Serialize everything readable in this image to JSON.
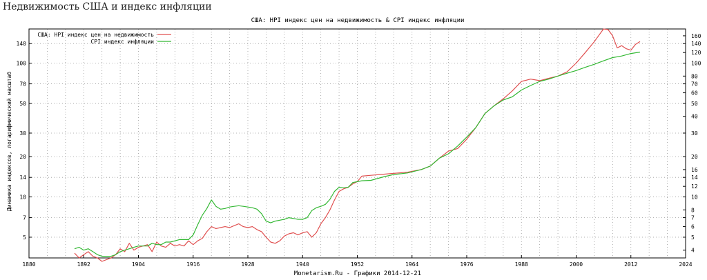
{
  "page": {
    "title": "Недвижимость США и индекс инфляции"
  },
  "chart_data": {
    "type": "line",
    "title": "США: HPI индекс цен на недвижимость & CPI индекс инфляции",
    "ylabel": "Динамика индексов, логарифмический масштаб",
    "footer": "Monetarism.Ru - Графики 2014-12-21",
    "y_scale": "log",
    "grid": true,
    "legend_position": "top-left",
    "xlim": [
      1880,
      2024
    ],
    "ylim": [
      3.5,
      180
    ],
    "x_ticks": [
      "1880",
      "1892",
      "1904",
      "1916",
      "1928",
      "1940",
      "1952",
      "1964",
      "1976",
      "1988",
      "2000",
      "2012",
      "2024"
    ],
    "y_ticks_left": [
      "5",
      "7",
      "10",
      "14",
      "20",
      "30",
      "50",
      "70",
      "100",
      "140"
    ],
    "y_ticks_right": [
      "4",
      "5",
      "6",
      "7",
      "8",
      "10",
      "12",
      "14",
      "16",
      "20",
      "30",
      "40",
      "50",
      "60",
      "70",
      "80",
      "100",
      "120",
      "140",
      "160"
    ],
    "series": [
      {
        "name": "США: HPI индекс цен на недвижимость",
        "color": "#e05050",
        "x": [
          1890,
          1891,
          1892,
          1893,
          1894,
          1895,
          1896,
          1897,
          1898,
          1899,
          1900,
          1901,
          1902,
          1903,
          1904,
          1905,
          1906,
          1907,
          1908,
          1909,
          1910,
          1911,
          1912,
          1913,
          1914,
          1915,
          1916,
          1917,
          1918,
          1919,
          1920,
          1921,
          1922,
          1923,
          1924,
          1925,
          1926,
          1927,
          1928,
          1929,
          1930,
          1931,
          1932,
          1933,
          1934,
          1935,
          1936,
          1937,
          1938,
          1939,
          1940,
          1941,
          1942,
          1943,
          1944,
          1945,
          1946,
          1947,
          1948,
          1949,
          1950,
          1951,
          1952,
          1953,
          1955,
          1958,
          1960,
          1963,
          1966,
          1968,
          1970,
          1972,
          1974,
          1976,
          1978,
          1980,
          1982,
          1984,
          1986,
          1988,
          1990,
          1992,
          1994,
          1996,
          1998,
          2000,
          2002,
          2004,
          2006,
          2007,
          2008,
          2009,
          2010,
          2011,
          2012,
          2013,
          2014
        ],
        "y": [
          3.8,
          3.5,
          3.7,
          3.9,
          3.6,
          3.5,
          3.3,
          3.4,
          3.5,
          3.7,
          4.1,
          3.9,
          4.5,
          4.0,
          4.2,
          4.3,
          4.4,
          3.9,
          4.6,
          4.3,
          4.2,
          4.5,
          4.3,
          4.4,
          4.3,
          4.7,
          4.4,
          4.7,
          4.9,
          5.5,
          6.0,
          5.8,
          5.9,
          6.0,
          5.9,
          6.1,
          6.3,
          6.0,
          5.9,
          6.0,
          5.7,
          5.5,
          5.0,
          4.6,
          4.5,
          4.7,
          5.1,
          5.3,
          5.4,
          5.2,
          5.4,
          5.5,
          5.0,
          5.4,
          6.3,
          7.0,
          8.0,
          9.5,
          11.0,
          11.5,
          11.8,
          12.5,
          13.0,
          14.3,
          14.5,
          14.8,
          15.0,
          15.3,
          16.0,
          17.0,
          19.5,
          22.0,
          23.0,
          27.0,
          33.0,
          42.0,
          48.0,
          54.0,
          62.0,
          73.0,
          76.0,
          74.0,
          77.0,
          80.0,
          86.0,
          100.0,
          120.0,
          145.0,
          180.0,
          178.0,
          160.0,
          130.0,
          135.0,
          128.0,
          125.0,
          138.0,
          145.0
        ]
      },
      {
        "name": "CPI индекс инфляции",
        "color": "#33b833",
        "x": [
          1890,
          1891,
          1892,
          1893,
          1894,
          1895,
          1896,
          1897,
          1898,
          1899,
          1900,
          1901,
          1902,
          1903,
          1904,
          1905,
          1906,
          1907,
          1908,
          1909,
          1910,
          1911,
          1912,
          1913,
          1914,
          1915,
          1916,
          1917,
          1918,
          1919,
          1920,
          1921,
          1922,
          1923,
          1924,
          1925,
          1926,
          1927,
          1928,
          1929,
          1930,
          1931,
          1932,
          1933,
          1934,
          1935,
          1936,
          1937,
          1938,
          1939,
          1940,
          1941,
          1942,
          1943,
          1944,
          1945,
          1946,
          1947,
          1948,
          1949,
          1950,
          1951,
          1952,
          1953,
          1955,
          1958,
          1960,
          1963,
          1966,
          1968,
          1970,
          1972,
          1974,
          1976,
          1978,
          1980,
          1982,
          1984,
          1986,
          1988,
          1990,
          1992,
          1994,
          1996,
          1998,
          2000,
          2002,
          2004,
          2006,
          2008,
          2010,
          2012,
          2014
        ],
        "y": [
          4.1,
          4.2,
          4.0,
          4.1,
          3.9,
          3.7,
          3.6,
          3.6,
          3.6,
          3.7,
          3.9,
          4.0,
          4.1,
          4.2,
          4.3,
          4.3,
          4.3,
          4.5,
          4.4,
          4.4,
          4.6,
          4.6,
          4.7,
          4.8,
          4.8,
          4.8,
          5.2,
          6.2,
          7.3,
          8.2,
          9.5,
          8.5,
          8.1,
          8.2,
          8.4,
          8.5,
          8.6,
          8.5,
          8.4,
          8.3,
          8.1,
          7.5,
          6.6,
          6.4,
          6.6,
          6.7,
          6.8,
          7.0,
          6.9,
          6.8,
          6.8,
          7.0,
          7.9,
          8.3,
          8.5,
          8.8,
          9.6,
          11.0,
          11.8,
          11.7,
          11.8,
          12.8,
          13.0,
          13.2,
          13.3,
          14.2,
          14.7,
          15.1,
          16.0,
          17.0,
          19.5,
          21.0,
          24.0,
          28.0,
          33.0,
          42.0,
          48.0,
          53.0,
          56.0,
          63.0,
          68.0,
          73.0,
          76.0,
          80.0,
          84.0,
          88.0,
          93.0,
          98.0,
          104.0,
          110.0,
          113.0,
          118.0,
          121.0
        ]
      }
    ]
  }
}
